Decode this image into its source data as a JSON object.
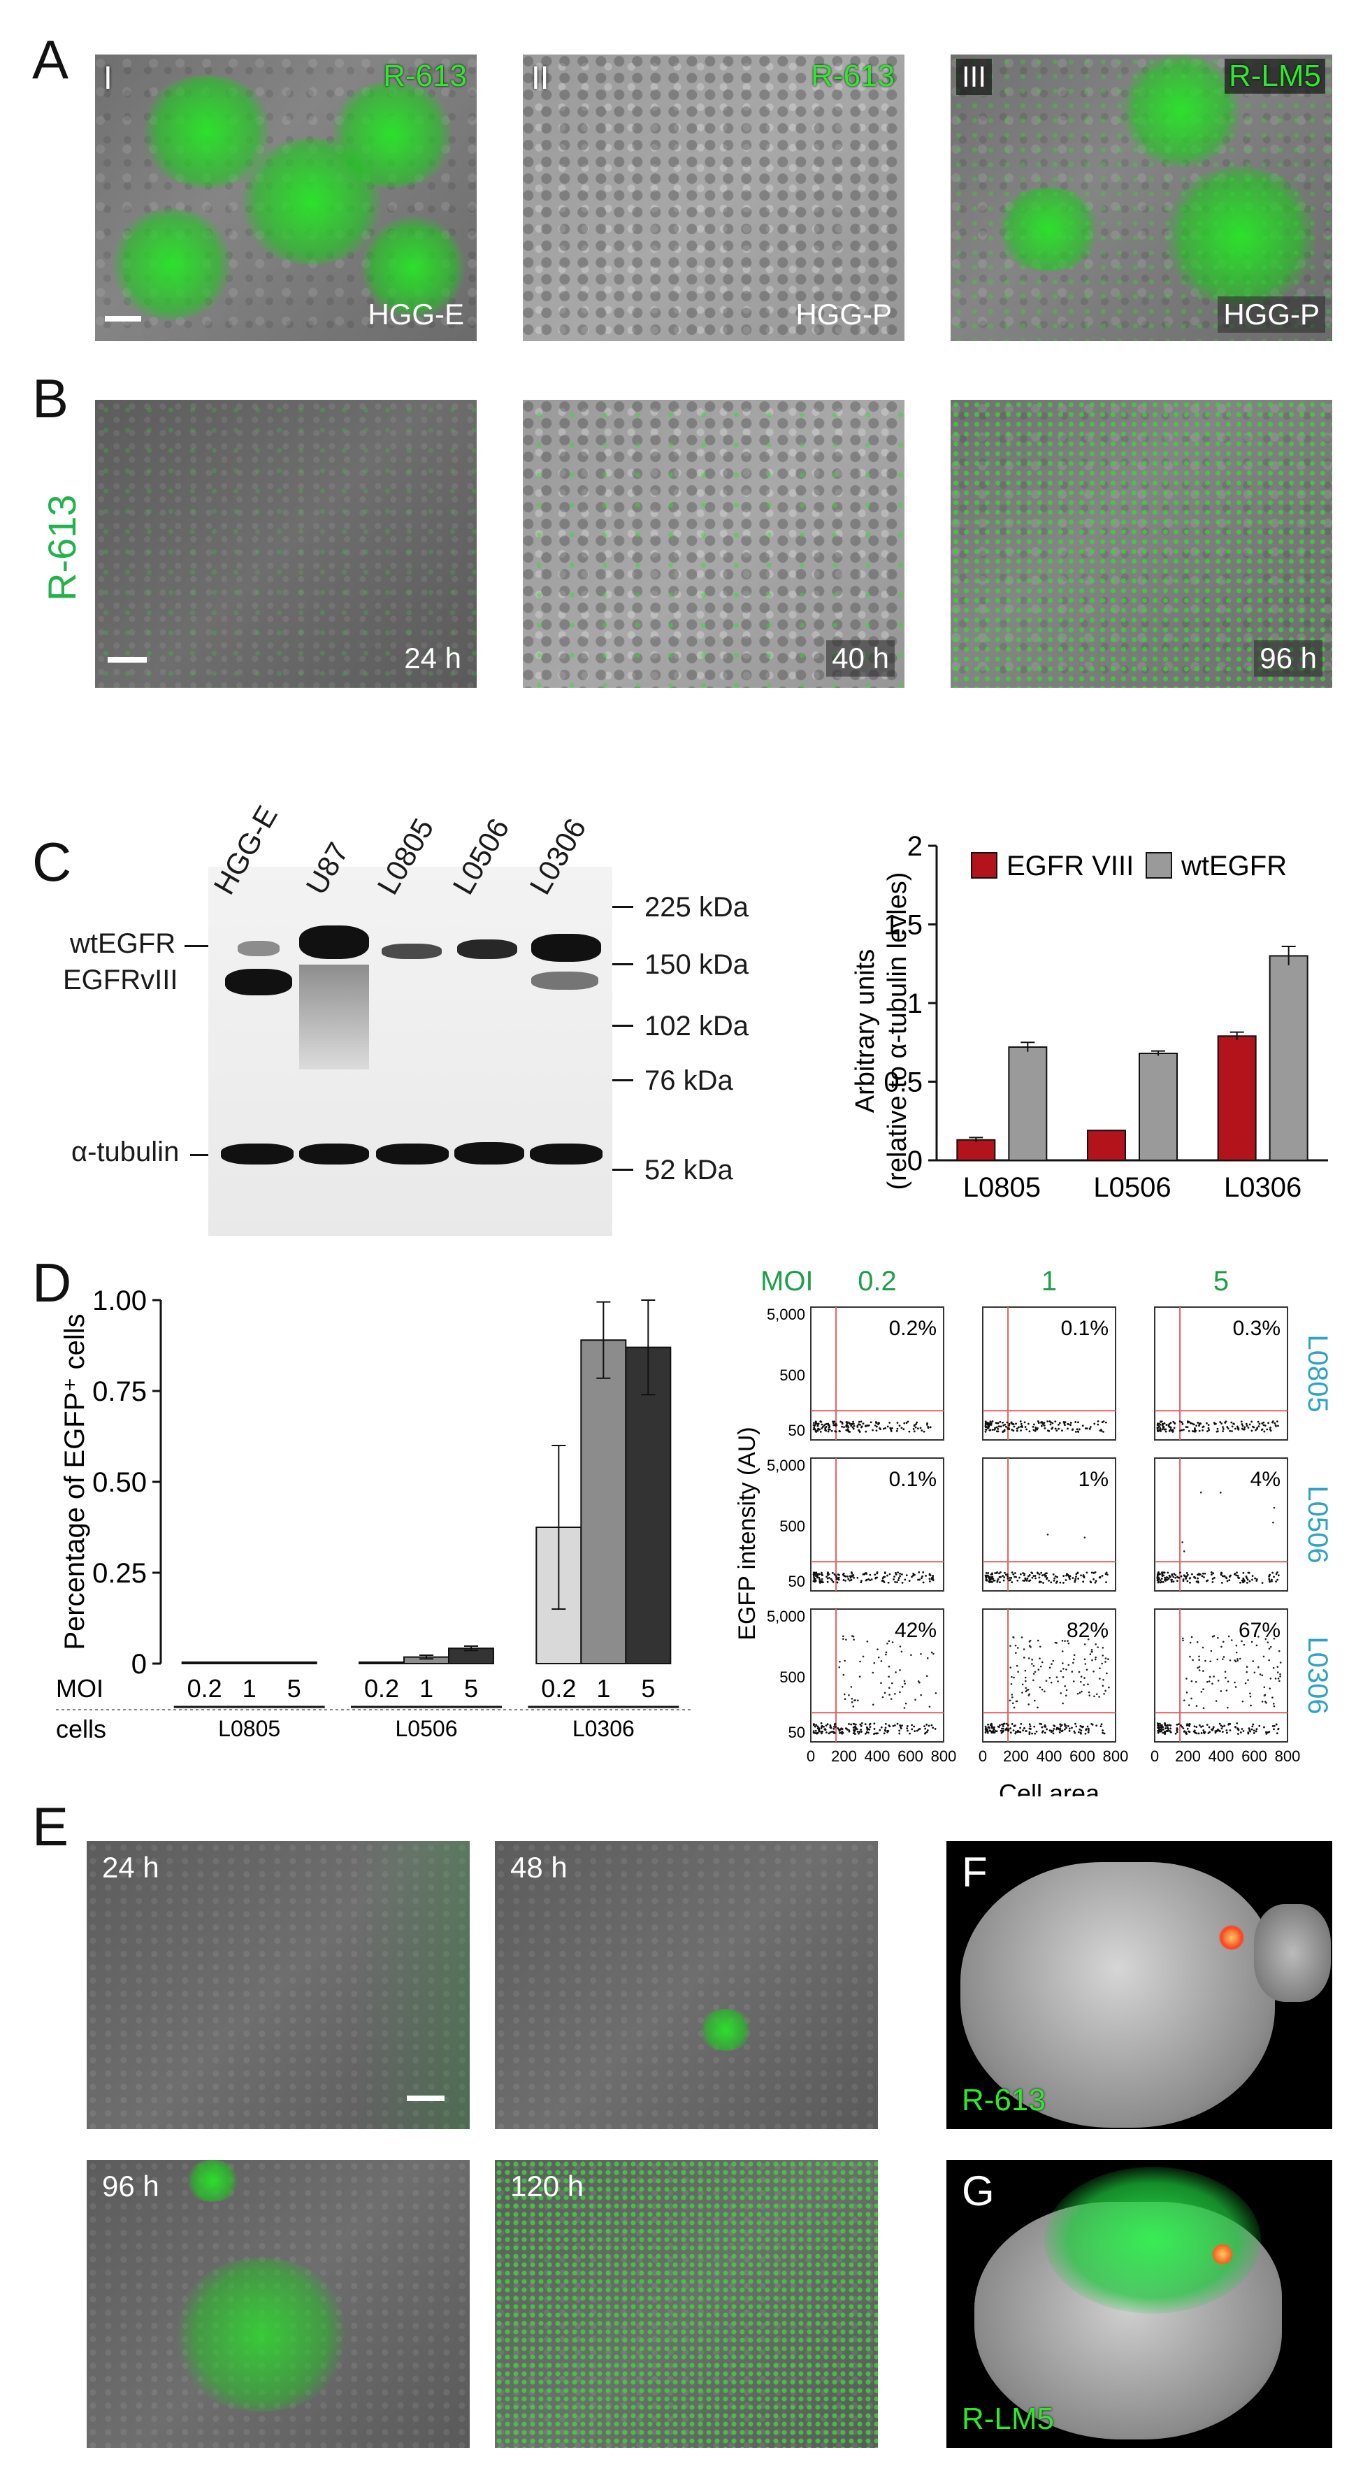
{
  "panel_letters": {
    "A": "A",
    "B": "B",
    "C": "C",
    "D": "D",
    "E": "E",
    "F": "F",
    "G": "G"
  },
  "panel_a": {
    "images": [
      {
        "roman": "I",
        "virus": "R-613",
        "cells": "HGG-E"
      },
      {
        "roman": "II",
        "virus": "R-613",
        "cells": "HGG-P"
      },
      {
        "roman": "III",
        "virus": "R-LM5",
        "cells": "HGG-P"
      }
    ]
  },
  "panel_b": {
    "side_label": "R-613",
    "times": [
      "24 h",
      "40 h",
      "96 h"
    ]
  },
  "panel_c_blot": {
    "lanes": [
      "HGG-E",
      "U87",
      "L0805",
      "L0506",
      "L0306"
    ],
    "markers": [
      "225 kDa",
      "150 kDa",
      "102 kDa",
      "76 kDa",
      "52 kDa"
    ],
    "band_labels": {
      "wt": "wtEGFR",
      "viii": "EGFRvIII",
      "tub": "α-tubulin"
    }
  },
  "panel_e": {
    "times": [
      "24 h",
      "48 h",
      "96 h",
      "120 h"
    ]
  },
  "panel_f": {
    "label": "R-613"
  },
  "panel_g": {
    "label": "R-LM5"
  },
  "flow": {
    "moi_label": "MOI",
    "moi_values": [
      "0.2",
      "1",
      "5"
    ],
    "cell_lines": [
      "L0805",
      "L0506",
      "L0306"
    ],
    "percents": [
      [
        "0.2%",
        "0.1%",
        "0.3%"
      ],
      [
        "0.1%",
        "1%",
        "4%"
      ],
      [
        "42%",
        "82%",
        "67%"
      ]
    ],
    "ylabel": "EGFP intensity (AU)",
    "xlabel": "Cell area",
    "yticks": [
      "5,000",
      "500",
      "50"
    ],
    "xticks": [
      "0",
      "200",
      "400",
      "600",
      "800"
    ]
  },
  "chart_data": [
    {
      "type": "bar",
      "panel": "C",
      "categories": [
        "L0805",
        "L0506",
        "L0306"
      ],
      "series": [
        {
          "name": "EGFR VIII",
          "color": "#b3141b",
          "values": [
            0.13,
            0.19,
            0.79
          ],
          "errors": [
            0.015,
            0.0,
            0.025
          ]
        },
        {
          "name": "wtEGFR",
          "color": "#9a9a9a",
          "values": [
            0.72,
            0.68,
            1.3
          ],
          "errors": [
            0.03,
            0.015,
            0.06
          ]
        }
      ],
      "ylabel": "Arbitrary units",
      "ylabel2": "(relative to α-tubulin levles)",
      "ylim": [
        0,
        2
      ],
      "yticks": [
        "0",
        "0.5",
        "1",
        "1.5",
        "2"
      ],
      "legend": "top"
    },
    {
      "type": "bar",
      "panel": "D",
      "categories": [
        "L0805",
        "L0506",
        "L0306"
      ],
      "x_sub": [
        "0.2",
        "1",
        "5"
      ],
      "row_labels": [
        "MOI",
        "cells"
      ],
      "series": [
        {
          "name": "0.2",
          "color": "#d9d9d9",
          "values": [
            0.0,
            0.0,
            0.375
          ],
          "errors": [
            0,
            0,
            0.225
          ]
        },
        {
          "name": "1",
          "color": "#8c8c8c",
          "values": [
            0.0,
            0.018,
            0.89
          ],
          "errors": [
            0,
            0.005,
            0.105
          ]
        },
        {
          "name": "5",
          "color": "#333333",
          "values": [
            0.0,
            0.042,
            0.87
          ],
          "errors": [
            0,
            0.006,
            0.13
          ]
        }
      ],
      "ylabel": "Percentage of EGFP⁺ cells",
      "ylim": [
        0,
        1
      ],
      "yticks": [
        "0",
        "0.25",
        "0.50",
        "0.75",
        "1.00"
      ]
    }
  ]
}
